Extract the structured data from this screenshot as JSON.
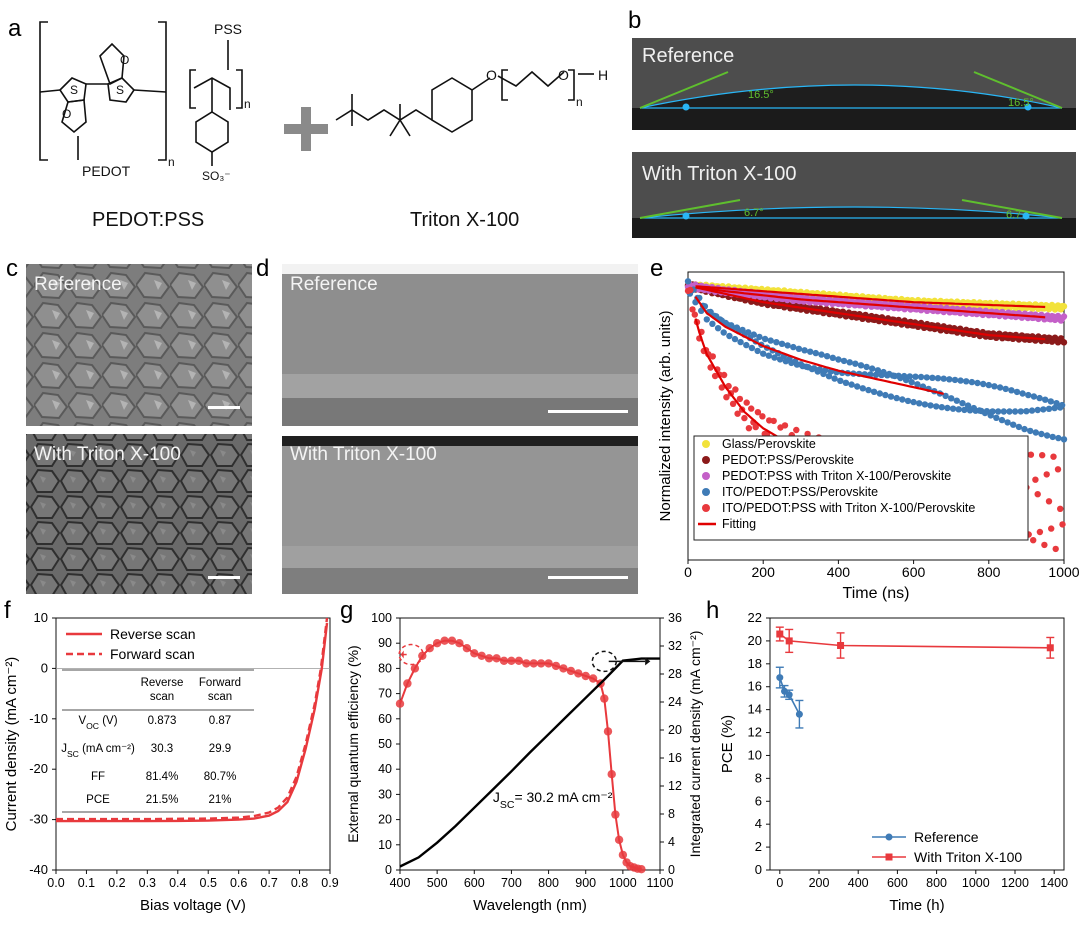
{
  "colors": {
    "red": "#e8393d",
    "blue": "#3f7bb6",
    "dark_red": "#8b1a1a",
    "yellow": "#f2e23a",
    "violet": "#c460c8",
    "green": "#5fbf2e",
    "cyan": "#29b6f6"
  },
  "panel_letters": [
    "a",
    "b",
    "c",
    "d",
    "e",
    "f",
    "g",
    "h"
  ],
  "panel_a": {
    "pss": "PSS",
    "pedot": "PEDOT",
    "pedot_pss": "PEDOT:PSS",
    "triton": "Triton X-100",
    "n": "n",
    "s": "S",
    "o": "O",
    "h": "H",
    "so3": "SO₃⁻"
  },
  "panel_b": {
    "top_label": "Reference",
    "bottom_label": "With Triton X-100",
    "top_angle": "16.5°",
    "bottom_angle": "6.7°",
    "bottom_angle_right": "6.7"
  },
  "panel_c": {
    "top_label": "Reference",
    "bottom_label": "With Triton X-100"
  },
  "panel_d": {
    "top_label": "Reference",
    "bottom_label": "With Triton X-100"
  },
  "panel_f": {
    "table": {
      "headers": [
        "",
        "Reverse\nscan",
        "Forward\nscan"
      ],
      "rows": [
        {
          "label": "V_OC (V)",
          "values": [
            "0.873",
            "0.87"
          ]
        },
        {
          "label": "J_SC (mA cm⁻²)",
          "values": [
            "30.3",
            "29.9"
          ]
        },
        {
          "label": "FF",
          "values": [
            "81.4%",
            "80.7%"
          ]
        },
        {
          "label": "PCE",
          "values": [
            "21.5%",
            "21%"
          ]
        }
      ]
    }
  },
  "panel_g": {
    "annotation": "J_SC= 30.2 mA cm⁻²"
  },
  "chart_data": [
    {
      "panel": "e",
      "type": "scatter",
      "xlabel": "Time (ns)",
      "ylabel": "Normalized intensity (arb. units)",
      "xlim": [
        0,
        1000
      ],
      "xticks": [
        0,
        200,
        400,
        600,
        800,
        1000
      ],
      "legend_position": "bottom-right",
      "series": [
        {
          "name": "Glass/Perovskite",
          "color": "#f2e23a",
          "x": [
            0,
            100,
            200,
            300,
            400,
            500,
            600,
            700,
            800,
            900,
            1000
          ],
          "y": [
            1.0,
            0.99,
            0.98,
            0.97,
            0.96,
            0.95,
            0.94,
            0.935,
            0.93,
            0.925,
            0.92
          ]
        },
        {
          "name": "PEDOT:PSS/Perovskite",
          "color": "#8b1a1a",
          "x": [
            0,
            100,
            200,
            300,
            400,
            500,
            600,
            700,
            800,
            900,
            1000
          ],
          "y": [
            1.0,
            0.97,
            0.94,
            0.92,
            0.9,
            0.88,
            0.86,
            0.84,
            0.82,
            0.81,
            0.8
          ]
        },
        {
          "name": "PEDOT:PSS with Triton X-100/Perovskite",
          "color": "#c460c8",
          "x": [
            0,
            100,
            200,
            300,
            400,
            500,
            600,
            700,
            800,
            900,
            1000
          ],
          "y": [
            1.0,
            0.98,
            0.965,
            0.95,
            0.94,
            0.93,
            0.92,
            0.91,
            0.9,
            0.89,
            0.88
          ]
        },
        {
          "name": "ITO/PEDOT:PSS/Perovskite",
          "color": "#3f7bb6",
          "x": [
            0,
            50,
            100,
            200,
            300,
            400,
            500,
            600,
            700,
            800,
            900,
            1000
          ],
          "y": [
            1.0,
            0.9,
            0.85,
            0.78,
            0.73,
            0.69,
            0.66,
            0.63,
            0.6,
            0.57,
            0.54,
            0.52
          ]
        },
        {
          "name": "ITO/PEDOT:PSS with Triton X-100/Perovskite",
          "color": "#e8393d",
          "x": [
            0,
            25,
            50,
            100,
            150,
            200,
            300,
            400,
            500,
            600,
            700,
            800,
            900,
            1000
          ],
          "y": [
            1.0,
            0.85,
            0.75,
            0.63,
            0.54,
            0.48,
            0.4,
            0.34,
            0.3,
            0.27,
            0.25,
            0.23,
            0.22,
            0.21
          ]
        },
        {
          "name": "Fitting",
          "color": "#e00000"
        }
      ]
    },
    {
      "panel": "f",
      "type": "line",
      "xlabel": "Bias voltage (V)",
      "ylabel": "Current density (mA cm⁻²)",
      "xlim": [
        0,
        0.9
      ],
      "ylim": [
        -40,
        10
      ],
      "xticks": [
        0.0,
        0.1,
        0.2,
        0.3,
        0.4,
        0.5,
        0.6,
        0.7,
        0.8,
        0.9
      ],
      "yticks": [
        10,
        0,
        -10,
        -20,
        -30,
        -40
      ],
      "legend_position": "top",
      "series": [
        {
          "name": "Reverse scan",
          "style": "solid",
          "x": [
            0,
            0.1,
            0.2,
            0.3,
            0.4,
            0.5,
            0.6,
            0.65,
            0.7,
            0.73,
            0.76,
            0.79,
            0.82,
            0.85,
            0.873,
            0.89
          ],
          "y": [
            -30.3,
            -30.3,
            -30.3,
            -30.3,
            -30.25,
            -30.2,
            -30.0,
            -29.8,
            -29.2,
            -28.3,
            -26.5,
            -22.5,
            -16,
            -8,
            0,
            9
          ]
        },
        {
          "name": "Forward scan",
          "style": "dashed",
          "x": [
            0,
            0.1,
            0.2,
            0.3,
            0.4,
            0.5,
            0.6,
            0.65,
            0.7,
            0.73,
            0.76,
            0.79,
            0.82,
            0.85,
            0.87,
            0.89
          ],
          "y": [
            -29.9,
            -29.9,
            -29.9,
            -29.9,
            -29.85,
            -29.8,
            -29.6,
            -29.3,
            -28.6,
            -27.6,
            -25.6,
            -21.5,
            -15,
            -7,
            0,
            10
          ]
        }
      ]
    },
    {
      "panel": "g",
      "type": "line",
      "xlabel": "Wavelength (nm)",
      "ylabel": "External quantum efficiency (%)",
      "ylabel_right": "Integrated current density (mA cm⁻²)",
      "xlim": [
        400,
        1100
      ],
      "ylim": [
        0,
        100
      ],
      "ylim_right": [
        0,
        36
      ],
      "xticks": [
        400,
        500,
        600,
        700,
        800,
        900,
        1000,
        1100
      ],
      "yticks": [
        0,
        10,
        20,
        30,
        40,
        50,
        60,
        70,
        80,
        90,
        100
      ],
      "yticks_right": [
        0,
        4,
        8,
        12,
        16,
        20,
        24,
        28,
        32,
        36
      ],
      "series": [
        {
          "name": "EQE",
          "axis": "left",
          "color": "#e8393d",
          "x": [
            400,
            420,
            440,
            460,
            480,
            500,
            520,
            540,
            560,
            580,
            600,
            620,
            640,
            660,
            680,
            700,
            720,
            740,
            760,
            780,
            800,
            820,
            840,
            860,
            880,
            900,
            920,
            940,
            950,
            960,
            970,
            980,
            990,
            1000,
            1010,
            1020,
            1030,
            1040,
            1050
          ],
          "y": [
            66,
            74,
            80,
            85,
            88,
            90,
            91,
            91,
            90,
            88,
            86,
            85,
            84,
            84,
            83,
            83,
            83,
            82,
            82,
            82,
            82,
            81,
            80,
            79,
            78,
            77,
            76,
            74,
            68,
            55,
            38,
            22,
            12,
            6,
            3,
            1.5,
            1,
            0.5,
            0.3
          ]
        },
        {
          "name": "Integrated current",
          "axis": "right",
          "color": "#000000",
          "x": [
            400,
            450,
            500,
            550,
            600,
            650,
            700,
            750,
            800,
            850,
            900,
            950,
            1000,
            1050,
            1100
          ],
          "y": [
            0.5,
            1.8,
            3.9,
            6.3,
            8.9,
            11.5,
            14.1,
            16.8,
            19.4,
            22.0,
            24.6,
            27.2,
            29.9,
            30.2,
            30.2
          ]
        }
      ]
    },
    {
      "panel": "h",
      "type": "line",
      "xlabel": "Time (h)",
      "ylabel": "PCE (%)",
      "xlim": [
        -50,
        1450
      ],
      "ylim": [
        0,
        22
      ],
      "xticks": [
        0,
        200,
        400,
        600,
        800,
        1000,
        1200,
        1400
      ],
      "yticks": [
        0,
        2,
        4,
        6,
        8,
        10,
        12,
        14,
        16,
        18,
        20,
        22
      ],
      "legend_position": "bottom-right",
      "series": [
        {
          "name": "Reference",
          "color": "#3f7bb6",
          "marker": "circle",
          "x": [
            0,
            24,
            48,
            100
          ],
          "y": [
            16.8,
            15.6,
            15.3,
            13.6
          ],
          "err": [
            0.9,
            0.5,
            0.4,
            1.2
          ]
        },
        {
          "name": "With Triton X-100",
          "color": "#e8393d",
          "marker": "square",
          "x": [
            0,
            48,
            310,
            1380
          ],
          "y": [
            20.6,
            20.0,
            19.6,
            19.4
          ],
          "err": [
            0.6,
            1.0,
            1.1,
            0.9
          ]
        }
      ]
    }
  ]
}
